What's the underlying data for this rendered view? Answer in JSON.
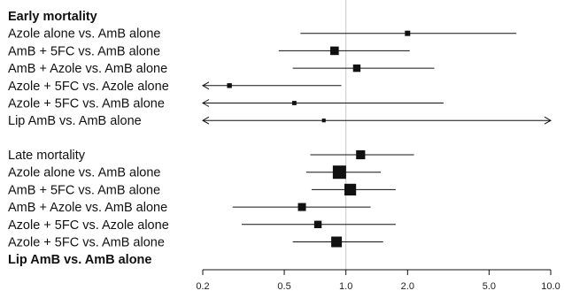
{
  "chart_data": {
    "type": "forest",
    "xscale": "log",
    "xlim": [
      0.2,
      10.0
    ],
    "xticks": [
      "0.2",
      "0.5",
      "1.0",
      "2.0",
      "5.0",
      "10.0"
    ],
    "reference_line": 1.0,
    "groups": [
      {
        "title": "Early mortality",
        "title_bold": true,
        "rows": [
          {
            "label": "Azole alone vs. AmB alone",
            "estimate": 2.0,
            "lower": 0.6,
            "upper": 6.8,
            "weight": 0.25,
            "arrow_left": false,
            "arrow_right": false
          },
          {
            "label": "AmB + 5FC vs. AmB alone",
            "estimate": 0.88,
            "lower": 0.47,
            "upper": 2.05,
            "weight": 0.55,
            "arrow_left": false,
            "arrow_right": false
          },
          {
            "label": "AmB + Azole vs. AmB alone",
            "estimate": 1.13,
            "lower": 0.55,
            "upper": 2.7,
            "weight": 0.45,
            "arrow_left": false,
            "arrow_right": false
          },
          {
            "label": "Azole + 5FC vs. Azole alone",
            "estimate": 0.27,
            "lower": 0.2,
            "upper": 0.95,
            "weight": 0.2,
            "arrow_left": true,
            "arrow_right": false
          },
          {
            "label": "Azole + 5FC vs. AmB alone",
            "estimate": 0.56,
            "lower": 0.2,
            "upper": 3.0,
            "weight": 0.15,
            "arrow_left": true,
            "arrow_right": false
          },
          {
            "label": "Lip AmB vs. AmB alone",
            "estimate": 0.78,
            "lower": 0.2,
            "upper": 10.0,
            "weight": 0.1,
            "arrow_left": true,
            "arrow_right": true
          }
        ]
      },
      {
        "title": "Late mortality",
        "title_bold": false,
        "rows": [
          {
            "label": "Late mortality",
            "estimate": 1.18,
            "lower": 0.67,
            "upper": 2.15,
            "weight": 0.6,
            "arrow_left": false,
            "arrow_right": false,
            "is_title_row": true
          },
          {
            "label": "Azole alone vs. AmB alone",
            "estimate": 0.93,
            "lower": 0.64,
            "upper": 1.48,
            "weight": 1.0,
            "arrow_left": false,
            "arrow_right": false
          },
          {
            "label": "AmB + 5FC vs. AmB alone",
            "estimate": 1.05,
            "lower": 0.68,
            "upper": 1.75,
            "weight": 0.85,
            "arrow_left": false,
            "arrow_right": false
          },
          {
            "label": "AmB + Azole vs. AmB alone",
            "estimate": 0.61,
            "lower": 0.28,
            "upper": 1.32,
            "weight": 0.5,
            "arrow_left": false,
            "arrow_right": false
          },
          {
            "label": "Azole + 5FC vs. Azole alone",
            "estimate": 0.73,
            "lower": 0.31,
            "upper": 1.75,
            "weight": 0.45,
            "arrow_left": false,
            "arrow_right": false
          },
          {
            "label": "Azole + 5FC vs. AmB alone",
            "estimate": 0.9,
            "lower": 0.55,
            "upper": 1.52,
            "weight": 0.75,
            "arrow_left": false,
            "arrow_right": false
          },
          {
            "label": "Lip AmB vs. AmB alone",
            "estimate": null,
            "lower": null,
            "upper": null,
            "weight": 0,
            "bold": true
          }
        ]
      }
    ]
  },
  "colors": {
    "ink": "#111111",
    "reference_line": "#c8c8c8",
    "background": "#ffffff"
  }
}
